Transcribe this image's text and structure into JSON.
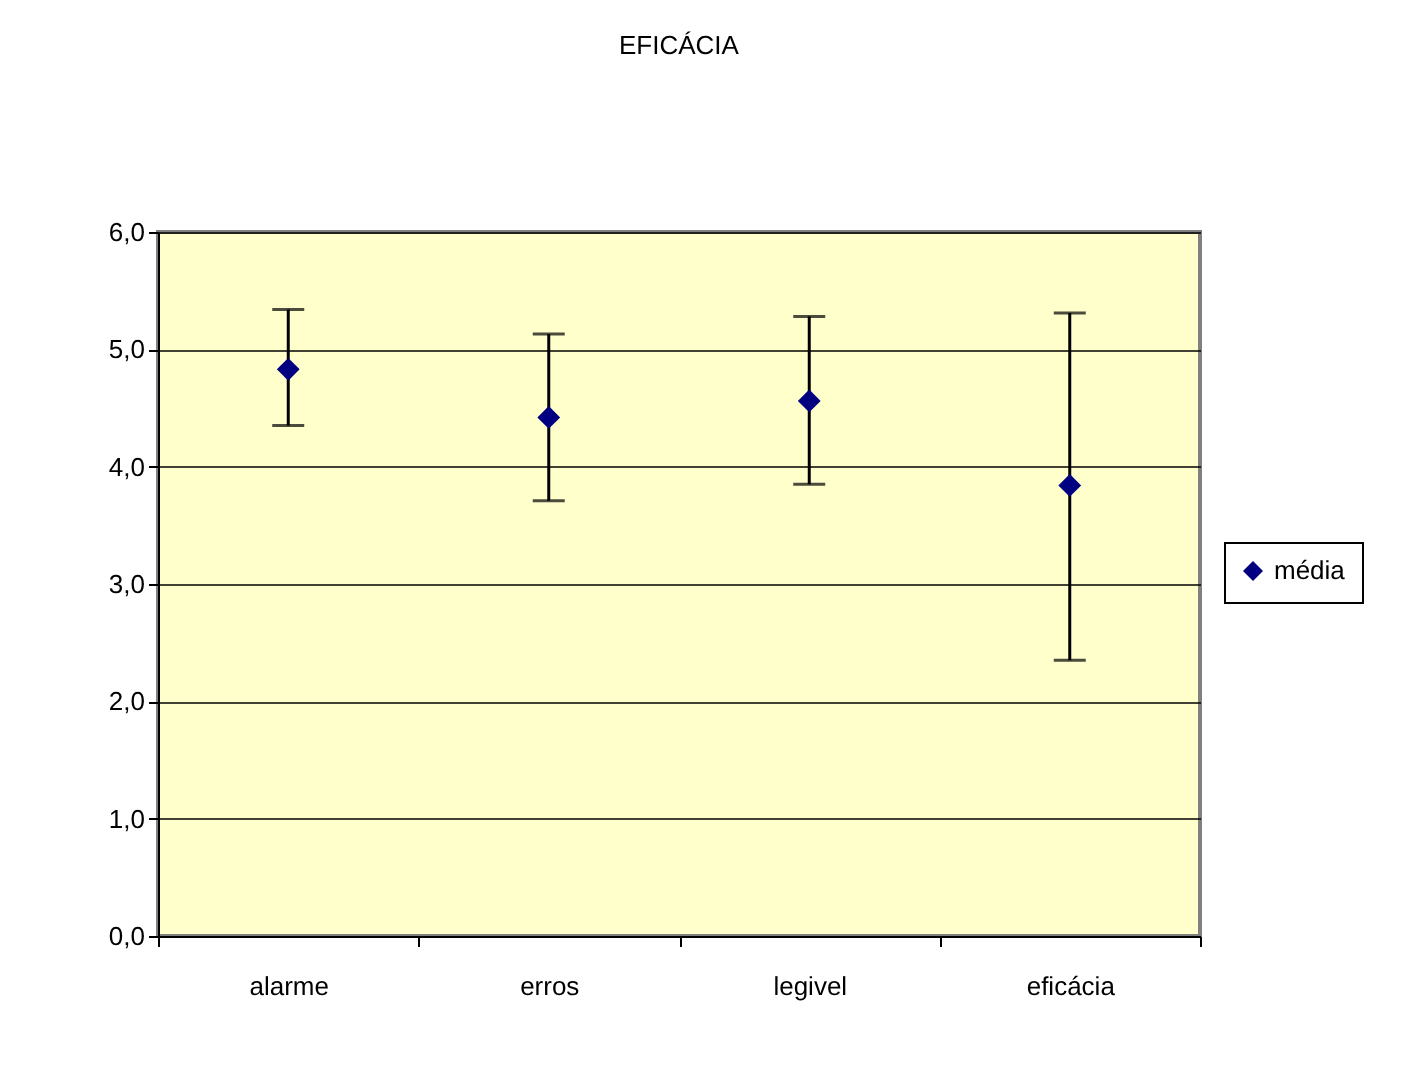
{
  "chart_data": {
    "type": "scatter",
    "title": "EFICÁCIA",
    "categories": [
      "alarme",
      "erros",
      "legivel",
      "eficácia"
    ],
    "series": [
      {
        "name": "média",
        "color": "#000080",
        "values": [
          4.83,
          4.42,
          4.56,
          3.84
        ],
        "errors": [
          [
            4.35,
            5.34
          ],
          [
            3.71,
            5.13
          ],
          [
            3.85,
            5.28
          ],
          [
            2.35,
            5.31
          ]
        ]
      }
    ],
    "ylim": [
      0,
      6
    ],
    "yticks": [
      {
        "value": 0,
        "label": "0,0"
      },
      {
        "value": 1,
        "label": "1,0"
      },
      {
        "value": 2,
        "label": "2,0"
      },
      {
        "value": 3,
        "label": "3,0"
      },
      {
        "value": 4,
        "label": "4,0"
      },
      {
        "value": 5,
        "label": "5,0"
      },
      {
        "value": 6,
        "label": "6,0"
      }
    ],
    "grid": "y",
    "legend": "right",
    "marker": "diamond"
  }
}
